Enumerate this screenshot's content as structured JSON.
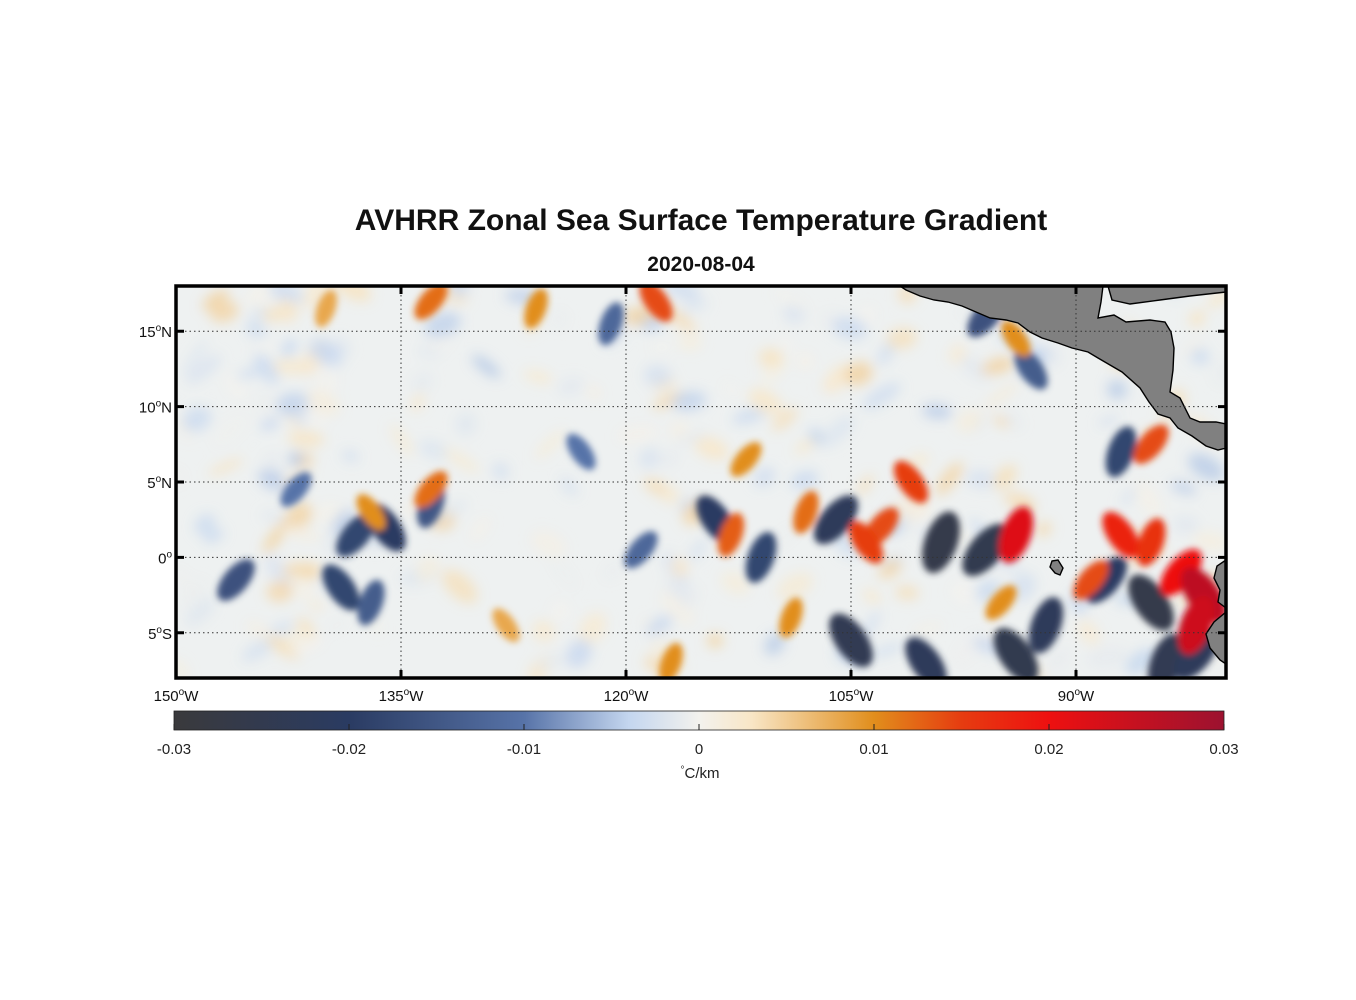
{
  "title": "AVHRR Zonal Sea Surface Temperature Gradient",
  "subtitle": "2020-08-04",
  "map": {
    "lon_range": [
      -150,
      -80
    ],
    "lat_range": [
      -8,
      18
    ],
    "lon_ticks": [
      {
        "value": -150,
        "deg": "150",
        "hemi": "W"
      },
      {
        "value": -135,
        "deg": "135",
        "hemi": "W"
      },
      {
        "value": -120,
        "deg": "120",
        "hemi": "W"
      },
      {
        "value": -105,
        "deg": "105",
        "hemi": "W"
      },
      {
        "value": -90,
        "deg": "90",
        "hemi": "W"
      }
    ],
    "lat_ticks": [
      {
        "value": 15,
        "deg": "15",
        "hemi": "N"
      },
      {
        "value": 10,
        "deg": "10",
        "hemi": "N"
      },
      {
        "value": 5,
        "deg": "5",
        "hemi": "N"
      },
      {
        "value": 0,
        "deg": "0",
        "hemi": ""
      },
      {
        "value": -5,
        "deg": "5",
        "hemi": "S"
      }
    ],
    "grid": "dotted",
    "land_color": "#808080",
    "features": [
      {
        "lon": -138,
        "lat": 1.5,
        "v": -0.018
      },
      {
        "lon": -136,
        "lat": 2.0,
        "v": -0.02
      },
      {
        "lon": -133,
        "lat": 3.5,
        "v": -0.015
      },
      {
        "lon": -146,
        "lat": -1.5,
        "v": -0.016
      },
      {
        "lon": -139,
        "lat": -2.0,
        "v": -0.018
      },
      {
        "lon": -137,
        "lat": -3.0,
        "v": -0.014
      },
      {
        "lon": -119,
        "lat": 0.5,
        "v": -0.012
      },
      {
        "lon": -114,
        "lat": 2.5,
        "v": -0.02
      },
      {
        "lon": -111,
        "lat": 0.0,
        "v": -0.018
      },
      {
        "lon": -106,
        "lat": 2.5,
        "v": -0.022
      },
      {
        "lon": -105,
        "lat": -5.5,
        "v": -0.024
      },
      {
        "lon": -99,
        "lat": 1.0,
        "v": -0.026
      },
      {
        "lon": -96,
        "lat": 0.5,
        "v": -0.025
      },
      {
        "lon": -94,
        "lat": -6.5,
        "v": -0.025
      },
      {
        "lon": -92,
        "lat": -4.5,
        "v": -0.022
      },
      {
        "lon": -88,
        "lat": -1.5,
        "v": -0.02
      },
      {
        "lon": -85,
        "lat": -3.0,
        "v": -0.026
      },
      {
        "lon": -84,
        "lat": -7.0,
        "v": -0.024
      },
      {
        "lon": -82,
        "lat": -6.5,
        "v": -0.022
      },
      {
        "lon": -100,
        "lat": -7.0,
        "v": -0.022
      },
      {
        "lon": -87,
        "lat": 7.0,
        "v": -0.018
      },
      {
        "lon": -96,
        "lat": 16.0,
        "v": -0.016
      },
      {
        "lon": -93,
        "lat": 12.5,
        "v": -0.014
      },
      {
        "lon": -121,
        "lat": 15.5,
        "v": -0.012
      },
      {
        "lon": -142,
        "lat": 4.5,
        "v": -0.01
      },
      {
        "lon": -123,
        "lat": 7.0,
        "v": -0.01
      },
      {
        "lon": -140,
        "lat": 16.5,
        "v": 0.008
      },
      {
        "lon": -133,
        "lat": 17.0,
        "v": 0.012
      },
      {
        "lon": -118,
        "lat": 17.0,
        "v": 0.014
      },
      {
        "lon": -126,
        "lat": 16.5,
        "v": 0.01
      },
      {
        "lon": -133,
        "lat": 4.5,
        "v": 0.012
      },
      {
        "lon": -137,
        "lat": 3.0,
        "v": 0.01
      },
      {
        "lon": -108,
        "lat": 3.0,
        "v": 0.012
      },
      {
        "lon": -103,
        "lat": 2.0,
        "v": 0.014
      },
      {
        "lon": -104,
        "lat": 1.0,
        "v": 0.015
      },
      {
        "lon": -113,
        "lat": 1.5,
        "v": 0.013
      },
      {
        "lon": -112,
        "lat": 6.5,
        "v": 0.01
      },
      {
        "lon": -101,
        "lat": 5.0,
        "v": 0.015
      },
      {
        "lon": -94,
        "lat": 1.5,
        "v": 0.022
      },
      {
        "lon": -89,
        "lat": -1.5,
        "v": 0.014
      },
      {
        "lon": -87,
        "lat": 1.5,
        "v": 0.018
      },
      {
        "lon": -85,
        "lat": 1.0,
        "v": 0.016
      },
      {
        "lon": -83,
        "lat": -1.0,
        "v": 0.02
      },
      {
        "lon": -81.5,
        "lat": -2.5,
        "v": 0.026
      },
      {
        "lon": -82,
        "lat": -4.5,
        "v": 0.024
      },
      {
        "lon": -85,
        "lat": 7.5,
        "v": 0.014
      },
      {
        "lon": -94,
        "lat": 14.5,
        "v": 0.01
      },
      {
        "lon": -109,
        "lat": -4.0,
        "v": 0.01
      },
      {
        "lon": -95,
        "lat": -3.0,
        "v": 0.01
      },
      {
        "lon": -128,
        "lat": -4.5,
        "v": 0.008
      },
      {
        "lon": -117,
        "lat": -7.0,
        "v": 0.01
      }
    ]
  },
  "colorbar": {
    "min": -0.03,
    "max": 0.03,
    "ticks": [
      {
        "value": -0.03,
        "label": "-0.03"
      },
      {
        "value": -0.02,
        "label": "-0.02"
      },
      {
        "value": -0.01,
        "label": "-0.01"
      },
      {
        "value": 0,
        "label": "0"
      },
      {
        "value": 0.01,
        "label": "0.01"
      },
      {
        "value": 0.02,
        "label": "0.02"
      },
      {
        "value": 0.03,
        "label": "0.03"
      }
    ],
    "stops": [
      {
        "v": -0.03,
        "color": "#3a3a3c"
      },
      {
        "v": -0.02,
        "color": "#2a3b62"
      },
      {
        "v": -0.01,
        "color": "#5773a8"
      },
      {
        "v": -0.004,
        "color": "#c4d6ef"
      },
      {
        "v": 0,
        "color": "#f3f2ee"
      },
      {
        "v": 0.003,
        "color": "#f8e6c6"
      },
      {
        "v": 0.01,
        "color": "#e18e1c"
      },
      {
        "v": 0.015,
        "color": "#e63c10"
      },
      {
        "v": 0.02,
        "color": "#ee1010"
      },
      {
        "v": 0.03,
        "color": "#9c1230"
      }
    ],
    "unit_degree": "°",
    "unit_label": "C/km"
  }
}
